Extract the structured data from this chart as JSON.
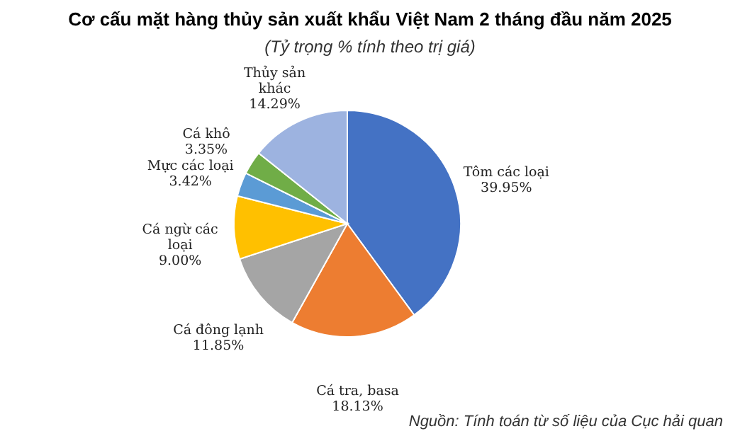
{
  "chart_data": {
    "type": "pie",
    "title": "Cơ cấu mặt hàng thủy sản xuất khẩu Việt Nam 2 tháng đầu năm 2025",
    "subtitle": "(Tỷ trọng % tính theo trị giá)",
    "categories": [
      "Tôm các loại",
      "Cá tra, basa",
      "Cá đông lạnh",
      "Cá ngừ các loại",
      "Mực các loại",
      "Cá khô",
      "Thủy sản khác"
    ],
    "values": [
      39.95,
      18.13,
      11.85,
      9.0,
      3.42,
      3.35,
      14.29
    ],
    "value_labels": [
      "39.95%",
      "18.13%",
      "11.85%",
      "9.00%",
      "3.42%",
      "3.35%",
      "14.29%"
    ],
    "colors": [
      "#4472c4",
      "#ed7d31",
      "#a5a5a5",
      "#ffc000",
      "#5b9bd5",
      "#70ad47",
      "#9db3e0"
    ],
    "annotations": [
      "Nguồn: Tính toán từ số liệu của Cục hải quan"
    ]
  }
}
